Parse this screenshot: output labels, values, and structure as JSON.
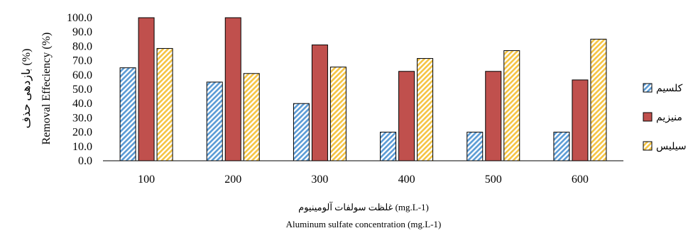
{
  "chart_data": {
    "type": "bar",
    "categories": [
      "100",
      "200",
      "300",
      "400",
      "500",
      "600"
    ],
    "series": [
      {
        "name": "کلسیم",
        "values": [
          65,
          55,
          40,
          20,
          20,
          20
        ],
        "color": "#5b9bd5",
        "pattern": "diagonal-hatch-blue"
      },
      {
        "name": "منیزیم",
        "values": [
          100,
          100,
          81,
          62.5,
          62.5,
          56.5
        ],
        "color": "#c0504d",
        "pattern": "solid"
      },
      {
        "name": "سیلیس",
        "values": [
          78.5,
          61,
          65.5,
          71.5,
          77,
          85
        ],
        "color": "#f5c443",
        "pattern": "diagonal-hatch-yellow"
      }
    ],
    "ylim": [
      0,
      100
    ],
    "yticks": [
      "0.0",
      "10.0",
      "20.0",
      "30.0",
      "40.0",
      "50.0",
      "60.0",
      "70.0",
      "80.0",
      "90.0",
      "100.0"
    ],
    "ylabel": "بازدهی حذف (%)",
    "ylabel_en": "Removal Effeciency (%)",
    "xlabel": "غلظت سولفات آلومینیوم (mg.L-1)",
    "xlabel_en": "Aluminum sulfate concentration (mg.L-1)",
    "legend_position": "right",
    "grid": false
  }
}
